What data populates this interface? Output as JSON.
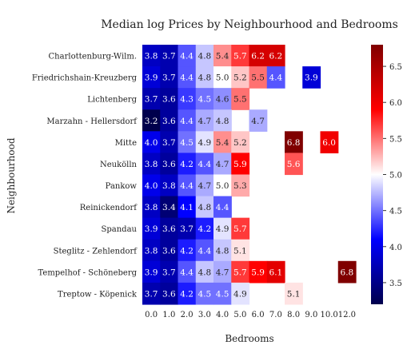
{
  "chart_data": {
    "type": "heatmap",
    "title": "Median log Prices by Neighbourhood and Bedrooms",
    "xlabel": "Bedrooms",
    "ylabel": "Neighbourhood",
    "x_categories": [
      "0.0",
      "1.0",
      "2.0",
      "3.0",
      "4.0",
      "5.0",
      "6.0",
      "7.0",
      "8.0",
      "9.0",
      "10.0",
      "12.0"
    ],
    "y_categories": [
      "Charlottenburg-Wilm.",
      "Friedrichshain-Kreuzberg",
      "Lichtenberg",
      "Marzahn - Hellersdorf",
      "Mitte",
      "Neukölln",
      "Pankow",
      "Reinickendorf",
      "Spandau",
      "Steglitz - Zehlendorf",
      "Tempelhof - Schöneberg",
      "Treptow - Köpenick"
    ],
    "values": [
      [
        3.8,
        3.7,
        4.4,
        4.8,
        5.4,
        5.7,
        6.2,
        6.2,
        null,
        null,
        null,
        null
      ],
      [
        3.9,
        3.7,
        4.4,
        4.8,
        5.0,
        5.2,
        5.5,
        4.4,
        null,
        3.9,
        null,
        null
      ],
      [
        3.7,
        3.6,
        4.3,
        4.5,
        4.6,
        5.5,
        null,
        null,
        null,
        null,
        null,
        null
      ],
      [
        3.2,
        3.6,
        4.4,
        4.7,
        4.8,
        null,
        4.7,
        null,
        null,
        null,
        null,
        null
      ],
      [
        4.0,
        3.7,
        4.5,
        4.9,
        5.4,
        5.2,
        null,
        null,
        6.8,
        null,
        6.0,
        null
      ],
      [
        3.8,
        3.6,
        4.2,
        4.4,
        4.7,
        5.9,
        null,
        null,
        5.6,
        null,
        null,
        null
      ],
      [
        4.0,
        3.8,
        4.4,
        4.7,
        5.0,
        5.3,
        null,
        null,
        null,
        null,
        null,
        null
      ],
      [
        3.8,
        3.4,
        4.1,
        4.8,
        4.4,
        null,
        null,
        null,
        null,
        null,
        null,
        null
      ],
      [
        3.9,
        3.6,
        3.7,
        4.2,
        4.9,
        5.7,
        null,
        null,
        null,
        null,
        null,
        null
      ],
      [
        3.8,
        3.6,
        4.2,
        4.4,
        4.8,
        5.1,
        null,
        null,
        null,
        null,
        null,
        null
      ],
      [
        3.9,
        3.7,
        4.4,
        4.8,
        4.7,
        5.7,
        5.9,
        6.1,
        null,
        null,
        null,
        6.8
      ],
      [
        3.7,
        3.6,
        4.2,
        4.5,
        4.5,
        4.9,
        null,
        null,
        5.1,
        null,
        null,
        null
      ]
    ],
    "colormap": "seismic",
    "vmin": 3.2,
    "vmax": 6.8,
    "colorbar_ticks": [
      "3.5",
      "4.0",
      "4.5",
      "5.0",
      "5.5",
      "6.0",
      "6.5"
    ],
    "colorbar_tick_values": [
      3.5,
      4.0,
      4.5,
      5.0,
      5.5,
      6.0,
      6.5
    ]
  }
}
